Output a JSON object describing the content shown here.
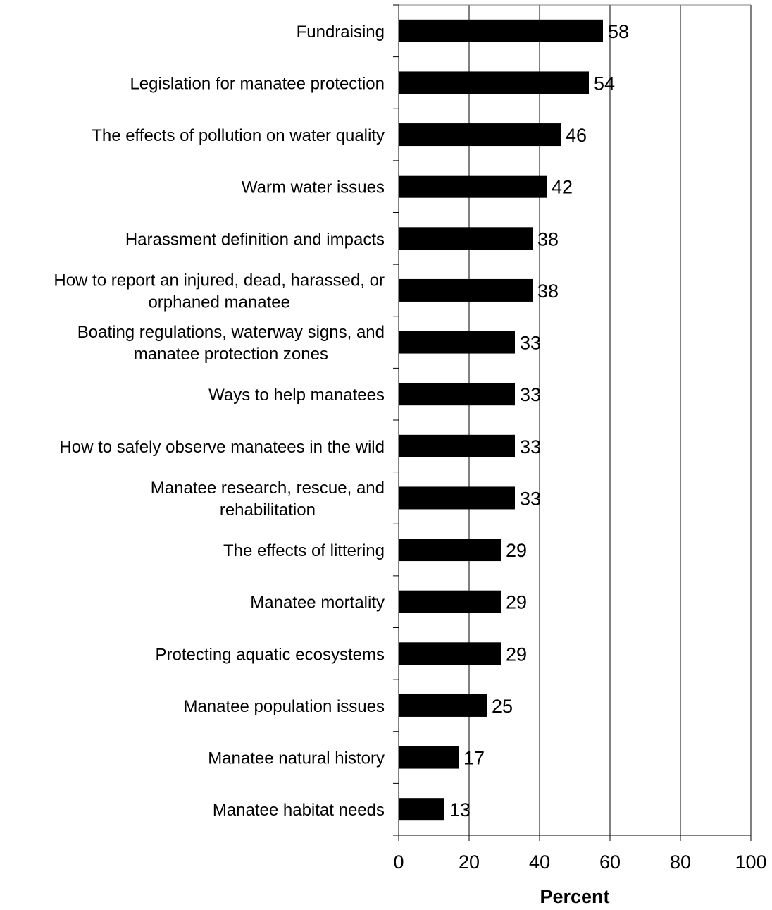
{
  "chart_data": {
    "type": "bar",
    "orientation": "horizontal",
    "xlabel": "Percent",
    "xlim": [
      0,
      100
    ],
    "xticks": [
      0,
      20,
      40,
      60,
      80,
      100
    ],
    "gridlines": "vertical",
    "legend": "none",
    "bar_color": "#000000",
    "categories": [
      [
        "Fundraising"
      ],
      [
        "Legislation for manatee protection"
      ],
      [
        "The effects of pollution on water quality"
      ],
      [
        "Warm water issues"
      ],
      [
        "Harassment definition and impacts"
      ],
      [
        "How to report an injured, dead, harassed, or",
        "orphaned manatee"
      ],
      [
        "Boating regulations, waterway signs, and",
        "manatee protection zones"
      ],
      [
        "Ways to help manatees"
      ],
      [
        "How to safely observe manatees in the wild"
      ],
      [
        "Manatee research, rescue, and",
        "rehabilitation"
      ],
      [
        "The effects of littering"
      ],
      [
        "Manatee mortality"
      ],
      [
        "Protecting aquatic ecosystems"
      ],
      [
        "Manatee population issues"
      ],
      [
        "Manatee natural history"
      ],
      [
        "Manatee habitat needs"
      ]
    ],
    "values": [
      58,
      54,
      46,
      42,
      38,
      38,
      33,
      33,
      33,
      33,
      29,
      29,
      29,
      25,
      17,
      13
    ]
  }
}
